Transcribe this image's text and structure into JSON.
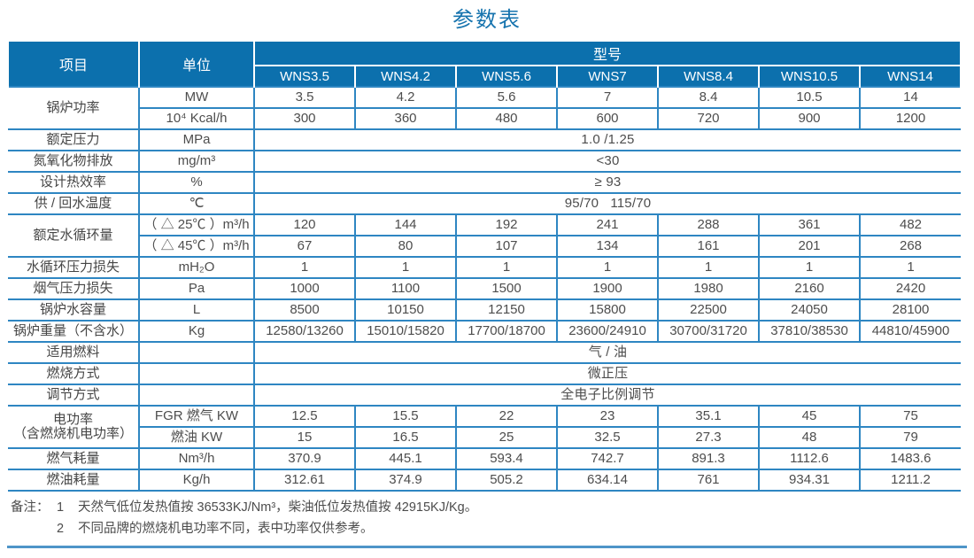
{
  "title": "参数表",
  "colors": {
    "header_bg": "#0C70AD",
    "border_blue": "#2E86C2",
    "title_blue": "#1573AE",
    "body_text": "#4D4D4D",
    "bottom_rule": "#4E95C8"
  },
  "table": {
    "item_header": "项目",
    "unit_header": "单位",
    "model_header": "型号",
    "models": [
      "WNS3.5",
      "WNS4.2",
      "WNS5.6",
      "WNS7",
      "WNS8.4",
      "WNS10.5",
      "WNS14"
    ],
    "rows": [
      {
        "label": "锅炉功率",
        "rowspan": 2,
        "unit": "MW",
        "values": [
          "3.5",
          "4.2",
          "5.6",
          "7",
          "8.4",
          "10.5",
          "14"
        ]
      },
      {
        "unit": "10⁴ Kcal/h",
        "values": [
          "300",
          "360",
          "480",
          "600",
          "720",
          "900",
          "1200"
        ]
      },
      {
        "label": "额定压力",
        "unit": "MPa",
        "merged": "1.0 /1.25"
      },
      {
        "label": "氮氧化物排放",
        "unit": "mg/m³",
        "merged": "<30"
      },
      {
        "label": "设计热效率",
        "unit": "%",
        "merged": "≥ 93"
      },
      {
        "label": "供 / 回水温度",
        "unit": "℃",
        "merged": "95/70   115/70"
      },
      {
        "label": "额定水循环量",
        "rowspan": 2,
        "unit": "（ △ 25℃ ）m³/h",
        "values": [
          "120",
          "144",
          "192",
          "241",
          "288",
          "361",
          "482"
        ]
      },
      {
        "unit": "（ △ 45℃ ）m³/h",
        "values": [
          "67",
          "80",
          "107",
          "134",
          "161",
          "201",
          "268"
        ]
      },
      {
        "label": "水循环压力损失",
        "unit": "mH₂O",
        "values": [
          "1",
          "1",
          "1",
          "1",
          "1",
          "1",
          "1"
        ]
      },
      {
        "label": "烟气压力损失",
        "unit": "Pa",
        "values": [
          "1000",
          "1100",
          "1500",
          "1900",
          "1980",
          "2160",
          "2420"
        ]
      },
      {
        "label": "锅炉水容量",
        "unit": "L",
        "values": [
          "8500",
          "10150",
          "12150",
          "15800",
          "22500",
          "24050",
          "28100"
        ]
      },
      {
        "label": "锅炉重量（不含水）",
        "unit": "Kg",
        "values": [
          "12580/13260",
          "15010/15820",
          "17700/18700",
          "23600/24910",
          "30700/31720",
          "37810/38530",
          "44810/45900"
        ]
      },
      {
        "label": "适用燃料",
        "unit": "",
        "merged": "气 / 油"
      },
      {
        "label": "燃烧方式",
        "unit": "",
        "merged": "微正压"
      },
      {
        "label": "调节方式",
        "unit": "",
        "merged": "全电子比例调节"
      },
      {
        "label": "电功率\n（含燃烧机电功率）",
        "rowspan": 2,
        "unit": "FGR 燃气 KW",
        "values": [
          "12.5",
          "15.5",
          "22",
          "23",
          "35.1",
          "45",
          "75"
        ]
      },
      {
        "unit": "燃油 KW",
        "values": [
          "15",
          "16.5",
          "25",
          "32.5",
          "27.3",
          "48",
          "79"
        ]
      },
      {
        "label": "燃气耗量",
        "unit": "Nm³/h",
        "values": [
          "370.9",
          "445.1",
          "593.4",
          "742.7",
          "891.3",
          "1112.6",
          "1483.6"
        ]
      },
      {
        "label": "燃油耗量",
        "unit": "Kg/h",
        "values": [
          "312.61",
          "374.9",
          "505.2",
          "634.14",
          "761",
          "934.31",
          "1211.2"
        ]
      }
    ]
  },
  "notes": {
    "prefix": "备注：",
    "items": [
      {
        "num": "1",
        "text": "天然气低位发热值按 36533KJ/Nm³，柴油低位发热值按 42915KJ/Kg。"
      },
      {
        "num": "2",
        "text": "不同品牌的燃烧机电功率不同，表中功率仅供参考。"
      }
    ]
  }
}
